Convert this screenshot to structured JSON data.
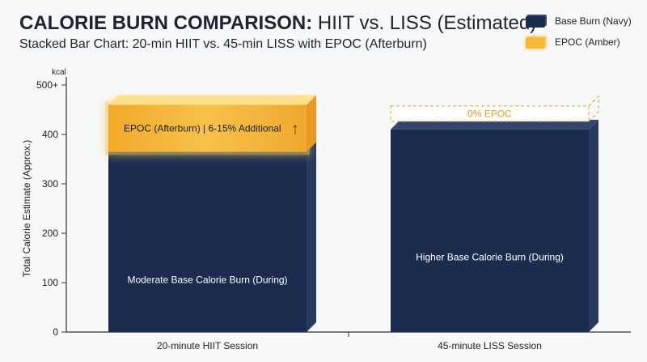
{
  "title": {
    "bold": "CALORIE BURN COMPARISON:",
    "rest": "HIIT vs. LISS (Estimated)"
  },
  "subtitle": "Stacked Bar Chart: 20-min HIIT vs. 45-min LISS with EPOC (Afterburn)",
  "legend": [
    {
      "label": "Base Burn (Navy)",
      "color": "#1c2c4f"
    },
    {
      "label": "EPOC (Amber)",
      "color": "#f5b83a"
    }
  ],
  "colors": {
    "base": "#1c2c4f",
    "epoc": "#f5b83a",
    "axis": "#333333"
  },
  "chart_data": {
    "type": "bar",
    "stacked": true,
    "categories": [
      "20-minute HIIT Session",
      "45-minute LISS Session"
    ],
    "series": [
      {
        "name": "Base Burn (Navy)",
        "values": [
          365,
          410
        ]
      },
      {
        "name": "EPOC (Amber)",
        "values": [
          95,
          0
        ]
      }
    ],
    "ylabel": "Total Calorie Estimate (Approx.)",
    "yunit": "kcal",
    "ylim": [
      0,
      500
    ],
    "yticks": [
      "0",
      "100",
      "200",
      "300",
      "400",
      "500+"
    ],
    "bar_labels": {
      "base": [
        "Moderate Base Calorie Burn (During)",
        "Higher Base Calorie Burn (During)"
      ],
      "epoc": [
        "EPOC (Afterburn) | 6-15% Additional",
        "0% EPOC"
      ]
    },
    "epoc_arrow": "↑",
    "grid": false
  }
}
